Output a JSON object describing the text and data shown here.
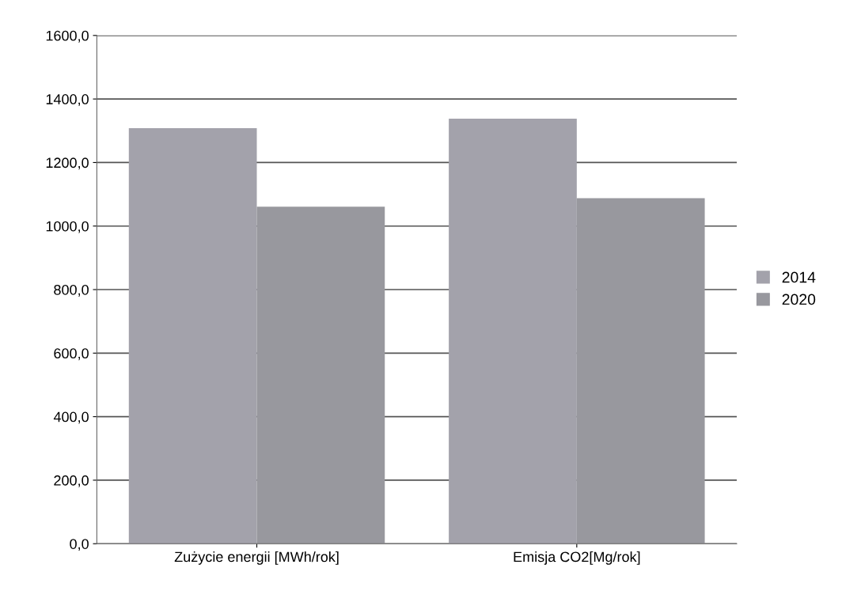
{
  "chart_data": {
    "type": "bar",
    "categories": [
      "Zużycie energii [MWh/rok]",
      "Emisja CO2[Mg/rok]"
    ],
    "series": [
      {
        "name": "2014",
        "color": "#a3a2ab",
        "values": [
          1308,
          1338
        ]
      },
      {
        "name": "2020",
        "color": "#98989e",
        "values": [
          1061,
          1088
        ]
      }
    ],
    "ylim": [
      0,
      1600
    ],
    "yticks": [
      {
        "value": 0,
        "label": "0,0"
      },
      {
        "value": 200,
        "label": "200,0"
      },
      {
        "value": 400,
        "label": "400,0"
      },
      {
        "value": 600,
        "label": "600,0"
      },
      {
        "value": 800,
        "label": "800,0"
      },
      {
        "value": 1000,
        "label": "1000,0"
      },
      {
        "value": 1200,
        "label": "1200,0"
      },
      {
        "value": 1400,
        "label": "1400,0"
      },
      {
        "value": 1600,
        "label": "1600,0"
      }
    ],
    "grid": "y",
    "legend": "right"
  }
}
